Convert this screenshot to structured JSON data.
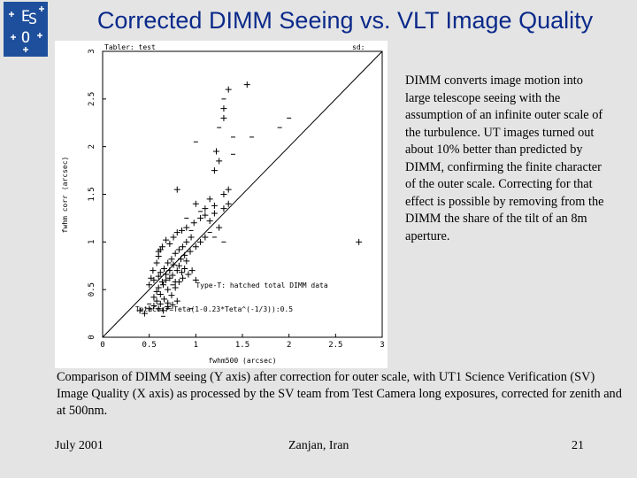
{
  "slide": {
    "title": "Corrected DIMM Seeing vs. VLT Image Quality",
    "logo_text": "ESO",
    "description": "DIMM converts image motion into large telescope seeing with the assumption of an infinite outer scale of the turbulence. UT images turned out about 10% better than predicted by DIMM, confirming the finite character of the outer scale. Correcting for that effect is possible by removing from the DIMM the share of the tilt of an 8m aperture.",
    "caption": "Comparison of DIMM seeing (Y axis) after correction for outer scale, with UT1 Science Verification (SV) Image Quality (X axis) as processed by the SV team from Test Camera long exposures, corrected for zenith and at 500nm.",
    "footer": {
      "date": "July 2001",
      "location": "Zanjan, Iran",
      "page": "21"
    }
  },
  "chart_data": {
    "type": "scatter",
    "corner_left": "Tabler: test",
    "corner_right": "sd:",
    "xlabel": "fwhm500 (arcsec)",
    "ylabel": "fwhm corr (arcsec)",
    "xlim": [
      0,
      3
    ],
    "ylim": [
      0,
      3
    ],
    "xticks": [
      0,
      0.5,
      1,
      1.5,
      2,
      2.5,
      3
    ],
    "yticks": [
      0,
      0.5,
      1,
      1.5,
      2,
      2.5,
      3
    ],
    "xtick_labels": [
      "0",
      "0.5",
      "1",
      "1.5",
      "2",
      "2.5",
      "3"
    ],
    "ytick_labels": [
      "0",
      "0.5",
      "1",
      "1.5",
      "2",
      "2.5",
      "3"
    ],
    "annotations": [
      {
        "text": "Type-T: hatched total DIMM data",
        "x": 1.0,
        "y": 0.52
      },
      {
        "text": "TetaCorr=Teta(1-0.23*Teta^(-1/3)):0.5",
        "x": 0.35,
        "y": 0.27
      }
    ],
    "reference_line": {
      "from": [
        0,
        0
      ],
      "to": [
        3,
        3
      ]
    },
    "series": [
      {
        "marker": "+",
        "points": [
          [
            0.55,
            0.42
          ],
          [
            0.58,
            0.48
          ],
          [
            0.6,
            0.52
          ],
          [
            0.62,
            0.45
          ],
          [
            0.65,
            0.55
          ],
          [
            0.68,
            0.6
          ],
          [
            0.7,
            0.5
          ],
          [
            0.72,
            0.62
          ],
          [
            0.75,
            0.65
          ],
          [
            0.78,
            0.58
          ],
          [
            0.8,
            0.7
          ],
          [
            0.82,
            0.75
          ],
          [
            0.85,
            0.68
          ],
          [
            0.88,
            0.72
          ],
          [
            0.9,
            0.8
          ],
          [
            0.62,
            0.68
          ],
          [
            0.66,
            0.72
          ],
          [
            0.7,
            0.78
          ],
          [
            0.74,
            0.82
          ],
          [
            0.78,
            0.88
          ],
          [
            0.82,
            0.92
          ],
          [
            0.86,
            0.95
          ],
          [
            0.9,
            1.0
          ],
          [
            0.95,
            1.05
          ],
          [
            0.6,
            0.9
          ],
          [
            0.64,
            0.95
          ],
          [
            0.68,
            1.02
          ],
          [
            0.72,
            0.98
          ],
          [
            0.76,
            1.05
          ],
          [
            0.8,
            1.1
          ],
          [
            0.85,
            1.12
          ],
          [
            0.9,
            1.15
          ],
          [
            0.98,
            1.2
          ],
          [
            1.05,
            1.25
          ],
          [
            1.1,
            1.28
          ],
          [
            1.15,
            1.22
          ],
          [
            1.2,
            1.3
          ],
          [
            1.0,
            0.95
          ],
          [
            1.05,
            1.0
          ],
          [
            1.1,
            1.05
          ],
          [
            0.58,
            0.38
          ],
          [
            0.62,
            0.35
          ],
          [
            0.66,
            0.4
          ],
          [
            0.7,
            0.36
          ],
          [
            0.74,
            0.44
          ],
          [
            0.78,
            0.52
          ],
          [
            0.82,
            0.58
          ],
          [
            0.86,
            0.62
          ],
          [
            0.92,
            0.66
          ],
          [
            0.96,
            0.7
          ],
          [
            1.0,
            0.6
          ],
          [
            0.4,
            0.28
          ],
          [
            0.45,
            0.25
          ],
          [
            0.5,
            0.3
          ],
          [
            0.55,
            0.33
          ],
          [
            0.6,
            0.3
          ],
          [
            0.65,
            0.28
          ],
          [
            0.7,
            0.32
          ],
          [
            0.75,
            0.34
          ],
          [
            0.8,
            0.38
          ],
          [
            0.55,
            0.6
          ],
          [
            0.6,
            0.64
          ],
          [
            0.64,
            0.58
          ],
          [
            0.68,
            0.66
          ],
          [
            0.72,
            0.7
          ],
          [
            0.76,
            0.76
          ],
          [
            0.84,
            0.82
          ],
          [
            0.88,
            0.86
          ],
          [
            0.94,
            0.9
          ],
          [
            1.0,
            1.4
          ],
          [
            1.1,
            1.35
          ],
          [
            1.2,
            1.38
          ],
          [
            1.25,
            1.15
          ],
          [
            1.3,
            1.35
          ],
          [
            1.35,
            1.4
          ],
          [
            1.15,
            1.45
          ],
          [
            1.3,
            1.5
          ],
          [
            1.35,
            1.55
          ],
          [
            0.8,
            1.55
          ],
          [
            1.2,
            1.75
          ],
          [
            1.25,
            1.85
          ],
          [
            1.22,
            1.95
          ],
          [
            1.3,
            2.3
          ],
          [
            1.3,
            2.4
          ],
          [
            1.55,
            2.65
          ],
          [
            1.35,
            2.6
          ],
          [
            2.75,
            1.0
          ],
          [
            0.5,
            0.55
          ],
          [
            0.52,
            0.62
          ],
          [
            0.54,
            0.7
          ],
          [
            0.58,
            0.78
          ],
          [
            0.6,
            0.85
          ],
          [
            0.62,
            0.92
          ]
        ]
      }
    ],
    "tick_marks": [
      [
        1.05,
        1.32
      ],
      [
        1.15,
        1.1
      ],
      [
        1.2,
        1.05
      ],
      [
        1.3,
        1.0
      ],
      [
        0.9,
        1.25
      ],
      [
        1.6,
        2.1
      ],
      [
        1.4,
        2.1
      ],
      [
        1.25,
        2.2
      ],
      [
        1.0,
        2.05
      ],
      [
        1.9,
        2.2
      ],
      [
        2.0,
        2.3
      ],
      [
        1.3,
        2.5
      ],
      [
        1.4,
        1.92
      ],
      [
        1.2,
        1.3
      ],
      [
        0.95,
        1.12
      ],
      [
        0.75,
        0.55
      ],
      [
        0.7,
        0.3
      ],
      [
        0.5,
        0.35
      ],
      [
        0.65,
        0.22
      ],
      [
        0.95,
        0.3
      ]
    ]
  }
}
